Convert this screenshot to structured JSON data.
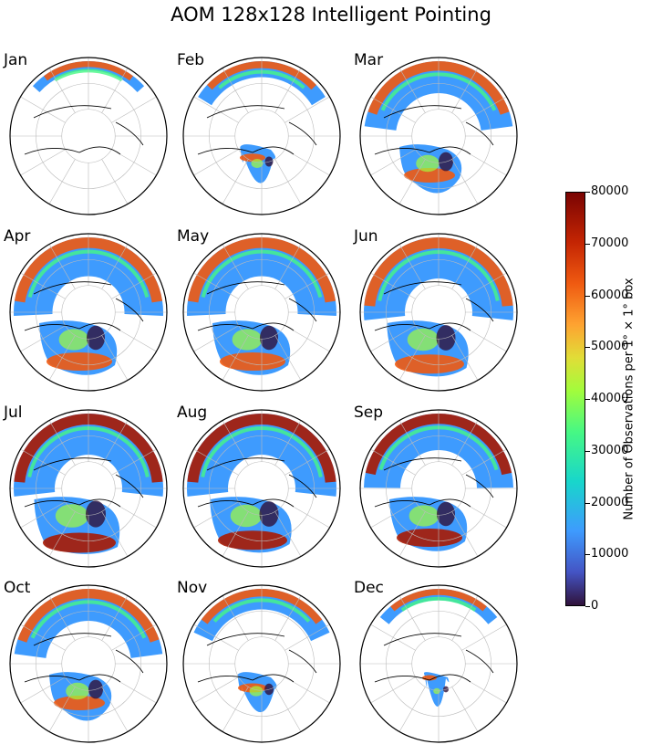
{
  "title": "AOM 128x128 Intelligent Pointing",
  "months": [
    "Jan",
    "Feb",
    "Mar",
    "Apr",
    "May",
    "Jun",
    "Jul",
    "Aug",
    "Sep",
    "Oct",
    "Nov",
    "Dec"
  ],
  "coverage": {
    "Jan": {
      "eurasia": 0.2,
      "america": 0.0,
      "intensity": 0.5
    },
    "Feb": {
      "eurasia": 0.35,
      "america": 0.25,
      "intensity": 0.4
    },
    "Mar": {
      "eurasia": 0.7,
      "america": 0.6,
      "intensity": 0.5
    },
    "Apr": {
      "eurasia": 0.85,
      "america": 0.8,
      "intensity": 0.55
    },
    "May": {
      "eurasia": 0.85,
      "america": 0.8,
      "intensity": 0.45
    },
    "Jun": {
      "eurasia": 0.9,
      "america": 0.85,
      "intensity": 0.6
    },
    "Jul": {
      "eurasia": 0.9,
      "america": 0.9,
      "intensity": 0.75
    },
    "Aug": {
      "eurasia": 0.9,
      "america": 0.85,
      "intensity": 0.75
    },
    "Sep": {
      "eurasia": 0.8,
      "america": 0.8,
      "intensity": 0.65
    },
    "Oct": {
      "eurasia": 0.7,
      "america": 0.6,
      "intensity": 0.55
    },
    "Nov": {
      "eurasia": 0.45,
      "america": 0.3,
      "intensity": 0.5
    },
    "Dec": {
      "eurasia": 0.25,
      "america": 0.1,
      "intensity": 0.5
    }
  },
  "colorbar": {
    "label": "Number of Observations per 1° × 1° box",
    "ticks": [
      "0",
      "10000",
      "20000",
      "30000",
      "40000",
      "50000",
      "60000",
      "70000",
      "80000"
    ],
    "min": 0,
    "max": 80000,
    "colormap": "turbo"
  }
}
